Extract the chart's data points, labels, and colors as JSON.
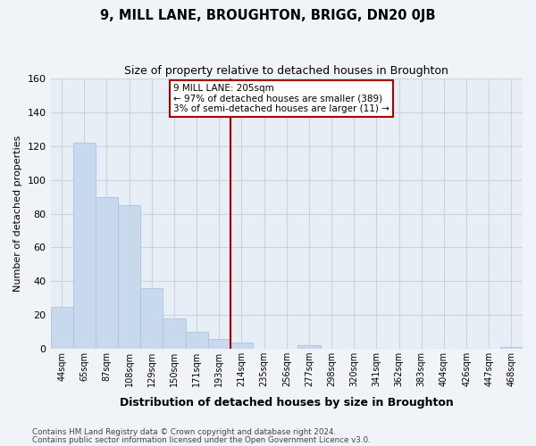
{
  "title": "9, MILL LANE, BROUGHTON, BRIGG, DN20 0JB",
  "subtitle": "Size of property relative to detached houses in Broughton",
  "xlabel": "Distribution of detached houses by size in Broughton",
  "ylabel": "Number of detached properties",
  "bar_labels": [
    "44sqm",
    "65sqm",
    "87sqm",
    "108sqm",
    "129sqm",
    "150sqm",
    "171sqm",
    "193sqm",
    "214sqm",
    "235sqm",
    "256sqm",
    "277sqm",
    "298sqm",
    "320sqm",
    "341sqm",
    "362sqm",
    "383sqm",
    "404sqm",
    "426sqm",
    "447sqm",
    "468sqm"
  ],
  "bar_values": [
    25,
    122,
    90,
    85,
    36,
    18,
    10,
    6,
    4,
    0,
    0,
    2,
    0,
    0,
    0,
    0,
    0,
    0,
    0,
    0,
    1
  ],
  "bar_color": "#c8d9ed",
  "bar_edge_color": "#a8c4e0",
  "vline_color": "#aa0000",
  "ylim": [
    0,
    160
  ],
  "yticks": [
    0,
    20,
    40,
    60,
    80,
    100,
    120,
    140,
    160
  ],
  "annotation_title": "9 MILL LANE: 205sqm",
  "annotation_line1": "← 97% of detached houses are smaller (389)",
  "annotation_line2": "3% of semi-detached houses are larger (11) →",
  "annotation_box_color": "#ffffff",
  "annotation_box_edge": "#aa0000",
  "footnote1": "Contains HM Land Registry data © Crown copyright and database right 2024.",
  "footnote2": "Contains public sector information licensed under the Open Government Licence v3.0.",
  "background_color": "#f0f4f8",
  "plot_bg_color": "#e8eef5",
  "grid_color": "#c8d4e0"
}
